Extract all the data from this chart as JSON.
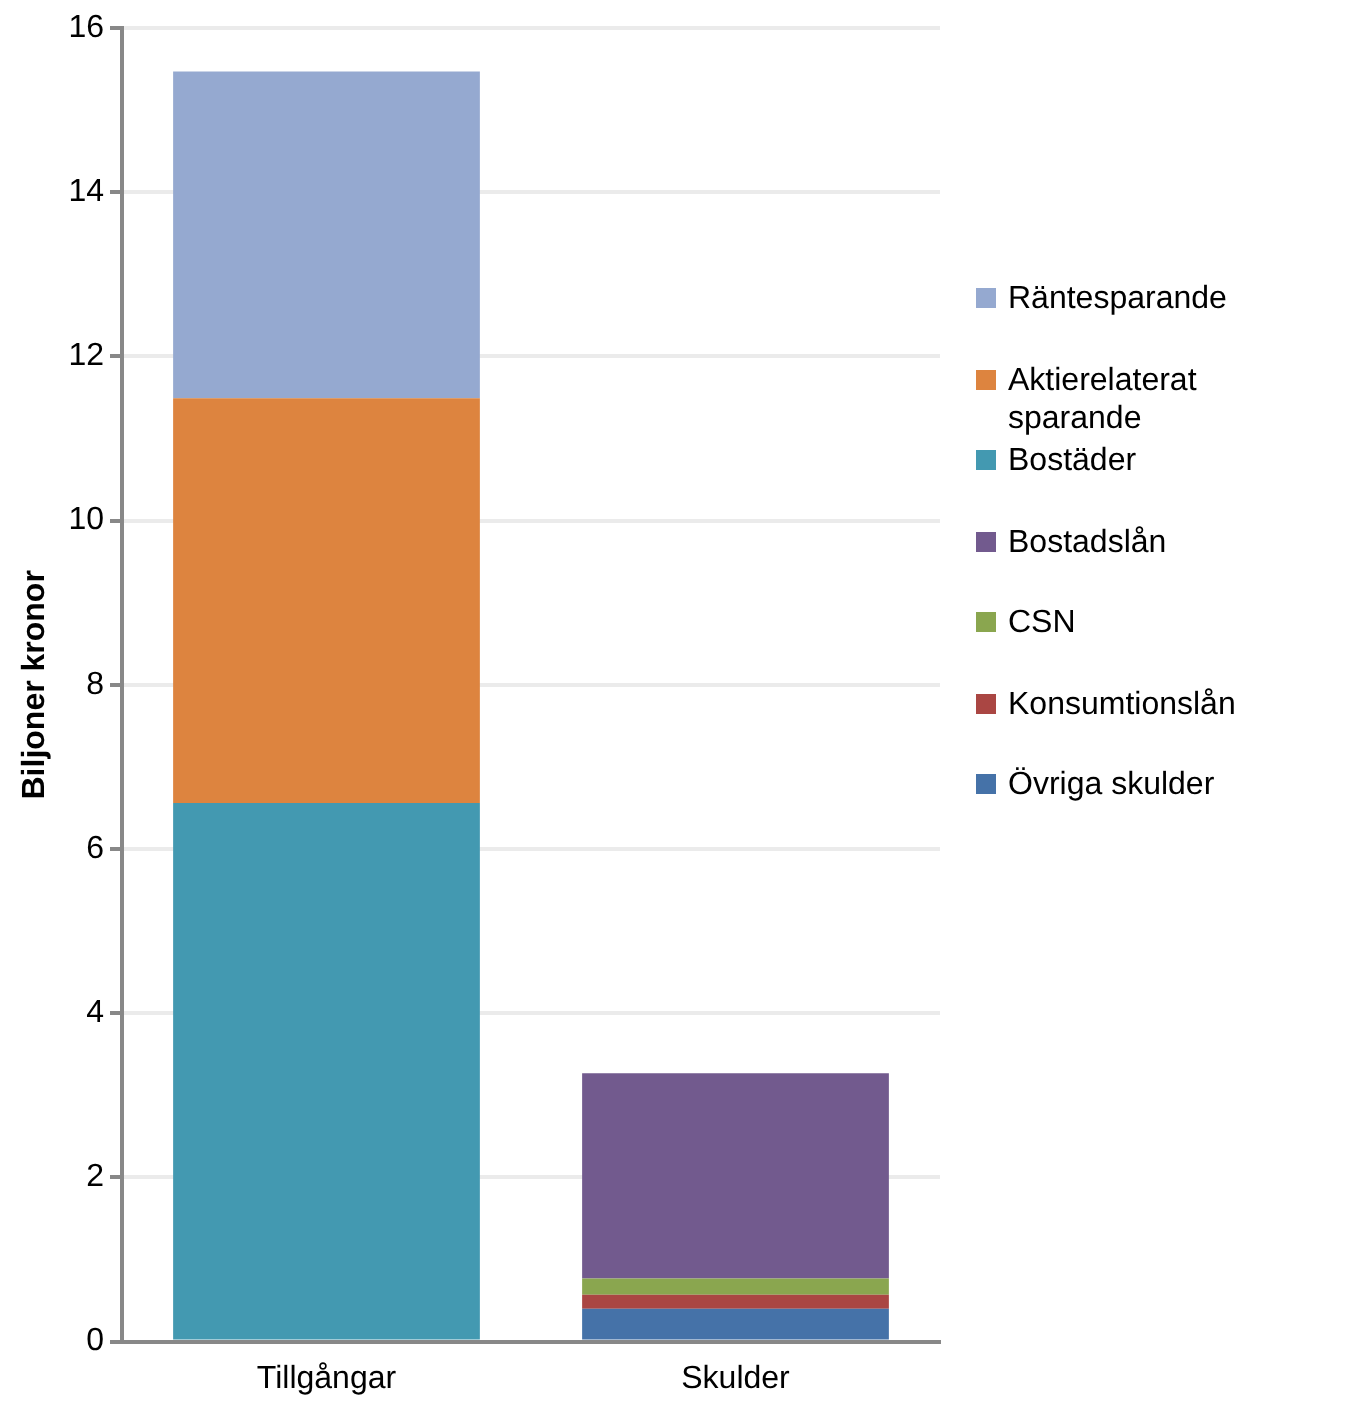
{
  "chart_data": {
    "type": "bar",
    "stacked": true,
    "ylabel": "Biljoner kronor",
    "categories": [
      "Tillgångar",
      "Skulder"
    ],
    "series": [
      {
        "name": "Övriga skulder",
        "color": "#4572a8",
        "values": [
          null,
          0.4
        ]
      },
      {
        "name": "Konsumtionslån",
        "color": "#aa4643",
        "values": [
          null,
          0.17
        ]
      },
      {
        "name": "CSN",
        "color": "#8aa64f",
        "values": [
          null,
          0.2
        ]
      },
      {
        "name": "Bostadslån",
        "color": "#725a8e",
        "values": [
          null,
          2.5
        ]
      },
      {
        "name": "Bostäder",
        "color": "#4399b1",
        "values": [
          6.56,
          null
        ]
      },
      {
        "name": "Aktierelaterat sparande",
        "color": "#dd843f",
        "values": [
          4.93,
          null
        ]
      },
      {
        "name": "Räntesparande",
        "color": "#95a9d0",
        "values": [
          3.98,
          null
        ]
      }
    ],
    "ylim": [
      0,
      16
    ],
    "yticks": [
      0,
      2,
      4,
      6,
      8,
      10,
      12,
      14,
      16
    ],
    "grid": "y",
    "legend": "right"
  }
}
